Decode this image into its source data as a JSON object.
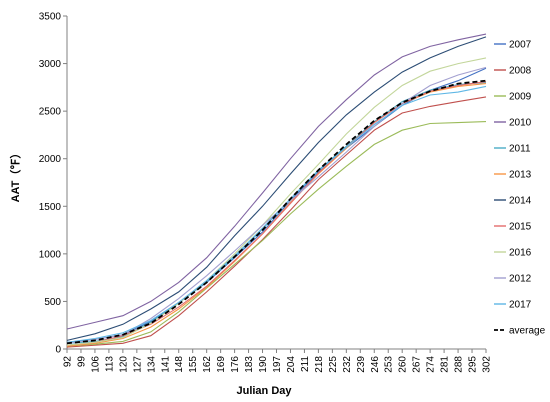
{
  "chart_data": {
    "type": "line",
    "xlabel": "Julian Day",
    "ylabel": "AAT（℉）",
    "ylim": [
      0,
      3500
    ],
    "yticks": [
      0,
      500,
      1000,
      1500,
      2000,
      2500,
      3000,
      3500
    ],
    "xlim": [
      92,
      302
    ],
    "xticks": [
      92,
      99,
      106,
      113,
      120,
      127,
      134,
      141,
      148,
      155,
      162,
      169,
      176,
      183,
      190,
      197,
      204,
      211,
      218,
      225,
      232,
      239,
      246,
      253,
      260,
      267,
      274,
      281,
      288,
      295,
      302
    ],
    "grid": false,
    "legend_position": "right",
    "x": [
      92,
      106,
      120,
      134,
      148,
      162,
      176,
      190,
      204,
      218,
      232,
      246,
      260,
      274,
      288,
      302
    ],
    "series": [
      {
        "name": "2007",
        "color": "#4472c4",
        "values": [
          70,
          100,
          150,
          290,
          490,
          700,
          960,
          1230,
          1560,
          1860,
          2110,
          2340,
          2560,
          2720,
          2820,
          2950
        ]
      },
      {
        "name": "2008",
        "color": "#c0504d",
        "values": [
          20,
          40,
          60,
          140,
          350,
          600,
          870,
          1150,
          1460,
          1780,
          2040,
          2300,
          2480,
          2550,
          2600,
          2650
        ]
      },
      {
        "name": "2009",
        "color": "#9bbb59",
        "values": [
          30,
          50,
          80,
          180,
          390,
          640,
          890,
          1140,
          1420,
          1680,
          1920,
          2150,
          2300,
          2370,
          2380,
          2390
        ]
      },
      {
        "name": "2010",
        "color": "#8064a2",
        "values": [
          210,
          280,
          350,
          500,
          700,
          960,
          1290,
          1640,
          2000,
          2340,
          2620,
          2880,
          3070,
          3180,
          3250,
          3310
        ]
      },
      {
        "name": "2011",
        "color": "#4bacc6",
        "values": [
          60,
          80,
          130,
          280,
          480,
          710,
          970,
          1260,
          1580,
          1880,
          2130,
          2390,
          2600,
          2720,
          2780,
          2800
        ]
      },
      {
        "name": "2013",
        "color": "#f79646",
        "values": [
          30,
          60,
          110,
          230,
          420,
          650,
          920,
          1210,
          1540,
          1840,
          2110,
          2380,
          2580,
          2700,
          2760,
          2790
        ]
      },
      {
        "name": "2014",
        "color": "#2c4d75",
        "values": [
          90,
          160,
          260,
          420,
          600,
          860,
          1190,
          1500,
          1840,
          2170,
          2460,
          2700,
          2910,
          3060,
          3180,
          3280
        ]
      },
      {
        "name": "2015",
        "color": "#e46c6c",
        "values": [
          40,
          70,
          140,
          260,
          440,
          660,
          930,
          1210,
          1530,
          1850,
          2120,
          2380,
          2580,
          2710,
          2770,
          2810
        ]
      },
      {
        "name": "2016",
        "color": "#c3d69b",
        "values": [
          40,
          70,
          120,
          270,
          480,
          720,
          1000,
          1300,
          1630,
          1940,
          2260,
          2540,
          2770,
          2920,
          3000,
          3060
        ]
      },
      {
        "name": "2012",
        "color": "#a3a0d0",
        "values": [
          60,
          100,
          150,
          320,
          530,
          770,
          1030,
          1300,
          1560,
          1810,
          2070,
          2340,
          2580,
          2770,
          2880,
          2960
        ]
      },
      {
        "name": "2017",
        "color": "#5fb7e5",
        "values": [
          70,
          110,
          170,
          300,
          490,
          720,
          980,
          1270,
          1580,
          1870,
          2120,
          2360,
          2560,
          2670,
          2700,
          2760
        ]
      },
      {
        "name": "average",
        "color": "#000000",
        "dashed": true,
        "values": [
          60,
          90,
          150,
          270,
          470,
          700,
          970,
          1250,
          1580,
          1880,
          2150,
          2400,
          2590,
          2710,
          2790,
          2820
        ]
      }
    ]
  }
}
